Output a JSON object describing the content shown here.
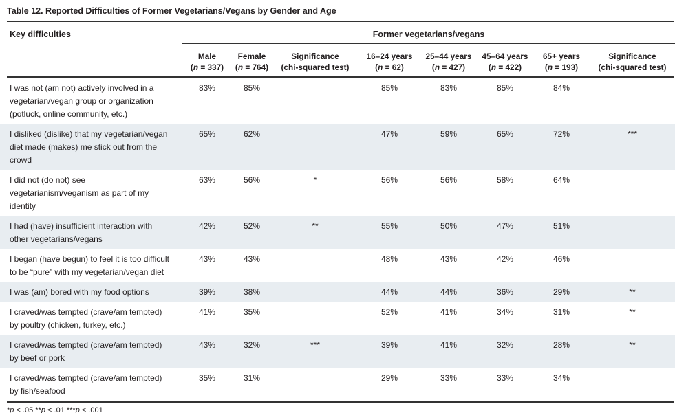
{
  "page": {
    "title": "Table 12. Reported Difficulties of Former Vegetarians/Vegans by Gender and Age"
  },
  "table": {
    "key_column_header": "Key difficulties",
    "group_header": "Former vegetarians/vegans",
    "columns": [
      {
        "label": "Male",
        "sub_parts": [
          "(",
          "n",
          " = 337)"
        ]
      },
      {
        "label": "Female",
        "sub_parts": [
          "(",
          "n",
          " = 764)"
        ]
      },
      {
        "label": "Significance",
        "sub_parts": [
          "(chi-squared test)"
        ]
      },
      {
        "label": "16–24 years",
        "sub_parts": [
          "(",
          "n",
          " = 62)"
        ]
      },
      {
        "label": "25–44 years",
        "sub_parts": [
          "(",
          "n",
          " = 427)"
        ]
      },
      {
        "label": "45–64 years",
        "sub_parts": [
          "(",
          "n",
          " = 422)"
        ]
      },
      {
        "label": "65+ years",
        "sub_parts": [
          "(",
          "n",
          " = 193)"
        ]
      },
      {
        "label": "Significance",
        "sub_parts": [
          "(chi-squared test)"
        ]
      }
    ],
    "rows": [
      {
        "label": "I was not (am not) actively involved in a vegetarian/vegan group or organization (potluck, online community, etc.)",
        "values": [
          "83%",
          "85%",
          "",
          "85%",
          "83%",
          "85%",
          "84%",
          ""
        ]
      },
      {
        "label": "I disliked (dislike) that my vegetarian/vegan diet made (makes) me stick out from the crowd",
        "values": [
          "65%",
          "62%",
          "",
          "47%",
          "59%",
          "65%",
          "72%",
          "***"
        ]
      },
      {
        "label": "I did not (do not) see vegetarianism/veganism as part of my identity",
        "values": [
          "63%",
          "56%",
          "*",
          "56%",
          "56%",
          "58%",
          "64%",
          ""
        ]
      },
      {
        "label": "I had (have) insufficient interaction with other vegetarians/vegans",
        "values": [
          "42%",
          "52%",
          "**",
          "55%",
          "50%",
          "47%",
          "51%",
          ""
        ]
      },
      {
        "label": "I began (have begun) to feel it is too difficult to be “pure” with my vegetarian/vegan diet",
        "values": [
          "43%",
          "43%",
          "",
          "48%",
          "43%",
          "42%",
          "46%",
          ""
        ]
      },
      {
        "label": "I was (am) bored with my food options",
        "values": [
          "39%",
          "38%",
          "",
          "44%",
          "44%",
          "36%",
          "29%",
          "**"
        ]
      },
      {
        "label": "I craved/was tempted (crave/am tempted) by poultry (chicken, turkey, etc.)",
        "values": [
          "41%",
          "35%",
          "",
          "52%",
          "41%",
          "34%",
          "31%",
          "**"
        ]
      },
      {
        "label": "I craved/was tempted (crave/am tempted) by beef or pork",
        "values": [
          "43%",
          "32%",
          "***",
          "39%",
          "41%",
          "32%",
          "28%",
          "**"
        ]
      },
      {
        "label": "I craved/was tempted (crave/am tempted) by fish/seafood",
        "values": [
          "35%",
          "31%",
          "",
          "29%",
          "33%",
          "33%",
          "34%",
          ""
        ]
      }
    ],
    "footnote_parts": [
      "*",
      "p",
      " < .05 **",
      "p",
      " < .01 ***",
      "p",
      " < .001"
    ]
  },
  "colors": {
    "text": "#231f20",
    "rule": "#333333",
    "divider": "#4d4d4d",
    "shaded": "#e8edf1",
    "page-bg": "#ffffff"
  }
}
